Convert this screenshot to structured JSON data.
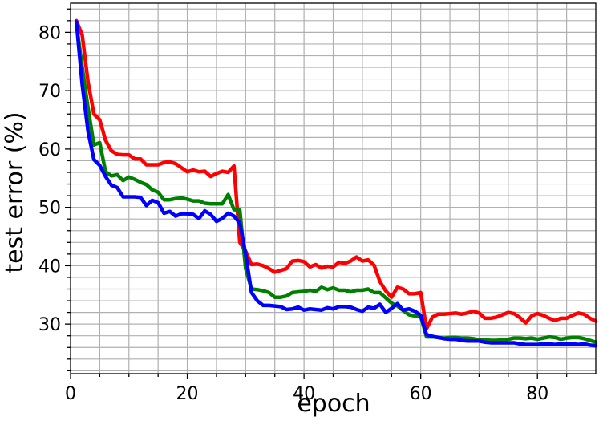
{
  "chart_data": {
    "type": "line",
    "title": "",
    "xlabel": "epoch",
    "ylabel": "test error (%)",
    "xlim": [
      0,
      90
    ],
    "ylim": [
      21.5,
      85
    ],
    "grid": true,
    "legend": "none",
    "xticks": [
      0,
      20,
      40,
      60,
      80
    ],
    "yticks": [
      30,
      40,
      50,
      60,
      70,
      80
    ],
    "x": [
      1,
      2,
      3,
      4,
      5,
      6,
      7,
      8,
      9,
      10,
      11,
      12,
      13,
      14,
      15,
      16,
      17,
      18,
      19,
      20,
      21,
      22,
      23,
      24,
      25,
      26,
      27,
      28,
      29,
      30,
      31,
      32,
      33,
      34,
      35,
      36,
      37,
      38,
      39,
      40,
      41,
      42,
      43,
      44,
      45,
      46,
      47,
      48,
      49,
      50,
      51,
      52,
      53,
      54,
      55,
      56,
      57,
      58,
      59,
      60,
      61,
      62,
      63,
      64,
      65,
      66,
      67,
      68,
      69,
      70,
      71,
      72,
      73,
      74,
      75,
      76,
      77,
      78,
      79,
      80,
      81,
      82,
      83,
      84,
      85,
      86,
      87,
      88,
      89,
      90
    ],
    "series": [
      {
        "color": "#ff0000",
        "values": [
          82,
          79.5,
          71.5,
          66,
          65,
          61.5,
          59.7,
          59.1,
          59,
          59,
          58.3,
          58.3,
          57.3,
          57.3,
          57.3,
          57.7,
          57.8,
          57.5,
          56.8,
          56.1,
          56.4,
          56.1,
          56.2,
          55.3,
          55.8,
          56.2,
          56,
          57.1,
          44,
          42.5,
          40.2,
          40.3,
          40,
          39.5,
          38.9,
          39.2,
          39.5,
          40.8,
          40.9,
          40.7,
          39.8,
          40.2,
          39.6,
          39.9,
          39.8,
          40.6,
          40.4,
          40.8,
          41.5,
          40.8,
          41,
          40.1,
          37.3,
          35.7,
          34.6,
          36.3,
          36,
          35.2,
          35.2,
          35.4,
          29.2,
          31.2,
          31.7,
          31.7,
          31.8,
          31.9,
          31.7,
          31.9,
          32.2,
          31.9,
          31,
          31,
          31.2,
          31.6,
          32,
          31.8,
          31.1,
          30.2,
          31.4,
          31.8,
          31.5,
          31,
          30.6,
          31,
          31,
          31.5,
          31.9,
          31.7,
          31,
          30.5
        ]
      },
      {
        "color": "#008000",
        "values": [
          81.5,
          74,
          67,
          60.7,
          61.1,
          56.1,
          55.4,
          55.6,
          54.6,
          55.2,
          54.8,
          54.3,
          53.9,
          53,
          52.6,
          51.3,
          51.3,
          51.5,
          51.6,
          51.4,
          51.1,
          51.1,
          50.7,
          50.6,
          50.6,
          50.6,
          52.2,
          49.6,
          49.5,
          39.5,
          36,
          35.9,
          35.7,
          35.4,
          34.6,
          34.6,
          34.8,
          35.4,
          35.5,
          35.6,
          35.8,
          35.6,
          36.3,
          35.9,
          36.2,
          35.8,
          35.8,
          35.5,
          35.8,
          35.8,
          36,
          35.4,
          35.4,
          34.5,
          33.6,
          33.1,
          32.3,
          31.6,
          31.4,
          31.3,
          27.8,
          27.8,
          27.7,
          27.6,
          27.7,
          27.7,
          27.6,
          27.6,
          27.5,
          27.3,
          27.3,
          27.2,
          27.2,
          27.3,
          27.4,
          27.6,
          27.6,
          27.5,
          27.6,
          27.4,
          27.6,
          27.8,
          27.7,
          27.4,
          27.6,
          27.7,
          27.7,
          27.5,
          27.2,
          26.9
        ]
      },
      {
        "color": "#0000ff",
        "values": [
          81.8,
          71,
          63,
          58.2,
          57.2,
          55.3,
          53.8,
          53.4,
          51.8,
          51.8,
          51.8,
          51.7,
          50.3,
          51.2,
          50.8,
          49,
          49.3,
          48.5,
          48.9,
          48.9,
          48.8,
          48.1,
          49.4,
          48.8,
          47.6,
          48.1,
          49,
          48.5,
          47.3,
          42,
          35.4,
          34,
          33.2,
          33.2,
          33.1,
          33,
          32.5,
          32.6,
          32.9,
          32.4,
          32.6,
          32.5,
          32.4,
          32.8,
          32.6,
          33,
          33,
          32.9,
          32.5,
          32.2,
          32.9,
          32.7,
          33.4,
          32,
          32.7,
          33.5,
          32.4,
          32.6,
          32.2,
          31.5,
          28.2,
          27.9,
          27.7,
          27.5,
          27.4,
          27.4,
          27.2,
          27.1,
          27.1,
          27.1,
          26.9,
          26.8,
          26.8,
          26.8,
          26.8,
          26.8,
          26.6,
          26.5,
          26.5,
          26.5,
          26.6,
          26.6,
          26.5,
          26.6,
          26.6,
          26.6,
          26.5,
          26.6,
          26.4,
          26.3
        ]
      }
    ]
  }
}
